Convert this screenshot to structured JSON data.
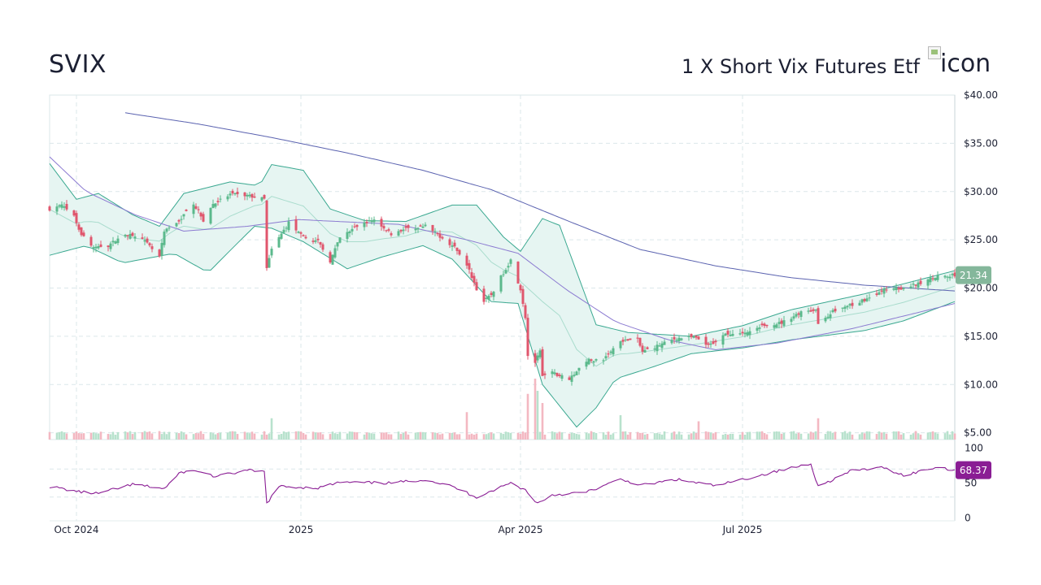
{
  "header": {
    "ticker": "SVIX",
    "name": "1 X Short Vix Futures Etf",
    "logo_alt": "icon"
  },
  "chart_data": {
    "type": "candlestick",
    "price_axis": {
      "ylim": [
        4.3,
        40.0
      ],
      "ticks": [
        5,
        10,
        15,
        20,
        25,
        30,
        35,
        40
      ],
      "tick_labels": [
        "$5.00",
        "$10.00",
        "$15.00",
        "$20.00",
        "$25.00",
        "$30.00",
        "$35.00",
        "$40.00"
      ],
      "grid": true
    },
    "x_axis": {
      "range": [
        "2024-09-20",
        "2025-09-26"
      ],
      "tick_dates": [
        "2024-10-01",
        "2025-01-01",
        "2025-04-01",
        "2025-07-01"
      ],
      "tick_labels": [
        "Oct 2024",
        "2025",
        "Apr 2025",
        "Jul 2025"
      ]
    },
    "close_anchors": [
      [
        "2024-09-20",
        28.2
      ],
      [
        "2024-09-25",
        28.6
      ],
      [
        "2024-09-30",
        27.4
      ],
      [
        "2024-10-03",
        25.6
      ],
      [
        "2024-10-08",
        24.2
      ],
      [
        "2024-10-14",
        24.4
      ],
      [
        "2024-10-21",
        25.6
      ],
      [
        "2024-10-28",
        25.1
      ],
      [
        "2024-11-04",
        23.2
      ],
      [
        "2024-11-06",
        25.8
      ],
      [
        "2024-11-12",
        27.0
      ],
      [
        "2024-11-18",
        28.8
      ],
      [
        "2024-11-22",
        27.0
      ],
      [
        "2024-11-26",
        28.7
      ],
      [
        "2024-12-03",
        29.7
      ],
      [
        "2024-12-10",
        29.6
      ],
      [
        "2024-12-17",
        29.2
      ],
      [
        "2024-12-18",
        22.0
      ],
      [
        "2024-12-20",
        24.0
      ],
      [
        "2024-12-27",
        26.8
      ],
      [
        "2025-01-02",
        25.2
      ],
      [
        "2025-01-08",
        24.8
      ],
      [
        "2025-01-13",
        22.8
      ],
      [
        "2025-01-17",
        25.2
      ],
      [
        "2025-01-24",
        26.4
      ],
      [
        "2025-01-31",
        27.1
      ],
      [
        "2025-02-07",
        25.6
      ],
      [
        "2025-02-14",
        26.2
      ],
      [
        "2025-02-21",
        26.4
      ],
      [
        "2025-02-28",
        25.2
      ],
      [
        "2025-03-06",
        24.0
      ],
      [
        "2025-03-11",
        21.8
      ],
      [
        "2025-03-14",
        19.9
      ],
      [
        "2025-03-17",
        18.6
      ],
      [
        "2025-03-20",
        19.3
      ],
      [
        "2025-03-25",
        21.6
      ],
      [
        "2025-03-28",
        22.9
      ],
      [
        "2025-04-01",
        19.9
      ],
      [
        "2025-04-03",
        17.0
      ],
      [
        "2025-04-04",
        13.0
      ],
      [
        "2025-04-07",
        12.3
      ],
      [
        "2025-04-09",
        13.4
      ],
      [
        "2025-04-10",
        10.8
      ],
      [
        "2025-04-14",
        11.2
      ],
      [
        "2025-04-21",
        10.6
      ],
      [
        "2025-04-28",
        12.5
      ],
      [
        "2025-05-05",
        12.6
      ],
      [
        "2025-05-12",
        14.6
      ],
      [
        "2025-05-19",
        14.6
      ],
      [
        "2025-05-21",
        13.4
      ],
      [
        "2025-05-28",
        14.1
      ],
      [
        "2025-06-04",
        14.8
      ],
      [
        "2025-06-11",
        14.9
      ],
      [
        "2025-06-17",
        14.0
      ],
      [
        "2025-06-24",
        15.2
      ],
      [
        "2025-07-01",
        15.2
      ],
      [
        "2025-07-10",
        16.2
      ],
      [
        "2025-07-17",
        16.4
      ],
      [
        "2025-07-24",
        17.4
      ],
      [
        "2025-07-31",
        17.8
      ],
      [
        "2025-08-01",
        16.3
      ],
      [
        "2025-08-07",
        17.6
      ],
      [
        "2025-08-14",
        18.2
      ],
      [
        "2025-08-21",
        18.9
      ],
      [
        "2025-08-28",
        19.8
      ],
      [
        "2025-09-04",
        20.0
      ],
      [
        "2025-09-11",
        20.4
      ],
      [
        "2025-09-18",
        21.2
      ],
      [
        "2025-09-26",
        21.34
      ]
    ],
    "sma_200_anchors": [
      [
        "2024-10-20",
        38.2
      ],
      [
        "2024-11-20",
        37.0
      ],
      [
        "2024-12-20",
        35.6
      ],
      [
        "2025-01-20",
        34.0
      ],
      [
        "2025-02-20",
        32.2
      ],
      [
        "2025-03-20",
        30.2
      ],
      [
        "2025-04-20",
        27.0
      ],
      [
        "2025-05-20",
        24.0
      ],
      [
        "2025-06-20",
        22.3
      ],
      [
        "2025-07-20",
        21.1
      ],
      [
        "2025-08-20",
        20.3
      ],
      [
        "2025-09-26",
        19.7
      ]
    ],
    "sma_50_anchors": [
      [
        "2024-09-20",
        33.6
      ],
      [
        "2024-10-05",
        30.0
      ],
      [
        "2024-10-25",
        27.6
      ],
      [
        "2024-11-14",
        25.9
      ],
      [
        "2024-12-10",
        26.4
      ],
      [
        "2024-12-31",
        27.1
      ],
      [
        "2025-02-10",
        26.6
      ],
      [
        "2025-03-10",
        25.0
      ],
      [
        "2025-03-31",
        23.6
      ],
      [
        "2025-04-20",
        19.8
      ],
      [
        "2025-05-10",
        16.5
      ],
      [
        "2025-06-01",
        14.6
      ],
      [
        "2025-06-20",
        13.6
      ],
      [
        "2025-07-15",
        14.3
      ],
      [
        "2025-08-15",
        15.8
      ],
      [
        "2025-09-26",
        18.4
      ]
    ],
    "bollinger_upper_anchors": [
      [
        "2024-09-20",
        32.9
      ],
      [
        "2024-10-01",
        29.2
      ],
      [
        "2024-10-10",
        29.8
      ],
      [
        "2024-10-24",
        27.6
      ],
      [
        "2024-11-04",
        26.4
      ],
      [
        "2024-11-14",
        29.8
      ],
      [
        "2024-12-03",
        31.0
      ],
      [
        "2024-12-15",
        30.6
      ],
      [
        "2024-12-20",
        32.8
      ],
      [
        "2025-01-02",
        32.2
      ],
      [
        "2025-01-13",
        28.2
      ],
      [
        "2025-01-27",
        27.0
      ],
      [
        "2025-02-13",
        26.9
      ],
      [
        "2025-03-04",
        28.6
      ],
      [
        "2025-03-14",
        28.6
      ],
      [
        "2025-03-25",
        25.3
      ],
      [
        "2025-04-01",
        23.8
      ],
      [
        "2025-04-10",
        27.2
      ],
      [
        "2025-04-17",
        26.5
      ],
      [
        "2025-05-02",
        16.2
      ],
      [
        "2025-05-15",
        15.4
      ],
      [
        "2025-06-10",
        15.0
      ],
      [
        "2025-07-01",
        16.1
      ],
      [
        "2025-07-20",
        17.7
      ],
      [
        "2025-08-20",
        19.4
      ],
      [
        "2025-09-26",
        21.8
      ]
    ],
    "bollinger_lower_anchors": [
      [
        "2024-09-20",
        23.4
      ],
      [
        "2024-10-05",
        24.4
      ],
      [
        "2024-10-20",
        22.6
      ],
      [
        "2024-11-10",
        23.6
      ],
      [
        "2024-11-24",
        21.6
      ],
      [
        "2024-12-05",
        24.4
      ],
      [
        "2024-12-13",
        26.4
      ],
      [
        "2024-12-20",
        26.2
      ],
      [
        "2025-01-02",
        24.8
      ],
      [
        "2025-01-20",
        22.0
      ],
      [
        "2025-02-03",
        23.2
      ],
      [
        "2025-02-20",
        24.4
      ],
      [
        "2025-03-04",
        23.0
      ],
      [
        "2025-03-20",
        18.6
      ],
      [
        "2025-03-31",
        18.4
      ],
      [
        "2025-04-10",
        10.0
      ],
      [
        "2025-04-24",
        5.6
      ],
      [
        "2025-05-02",
        7.6
      ],
      [
        "2025-05-10",
        10.6
      ],
      [
        "2025-05-25",
        11.8
      ],
      [
        "2025-06-10",
        13.2
      ],
      [
        "2025-07-01",
        13.8
      ],
      [
        "2025-07-20",
        14.6
      ],
      [
        "2025-08-20",
        15.6
      ],
      [
        "2025-09-05",
        16.6
      ],
      [
        "2025-09-26",
        18.6
      ]
    ],
    "volume_spikes": [
      [
        "2024-12-20",
        0.35
      ],
      [
        "2025-03-10",
        0.45
      ],
      [
        "2025-04-04",
        0.75
      ],
      [
        "2025-04-07",
        1.0
      ],
      [
        "2025-04-08",
        0.8
      ],
      [
        "2025-04-10",
        0.6
      ],
      [
        "2025-05-12",
        0.4
      ],
      [
        "2025-06-13",
        0.3
      ],
      [
        "2025-08-01",
        0.35
      ]
    ],
    "rsi_axis": {
      "ylim": [
        -4,
        104
      ],
      "ticks": [
        0,
        50,
        100
      ],
      "tick_labels": [
        "0",
        "50",
        "100"
      ],
      "bands": [
        30,
        70
      ]
    },
    "rsi_anchors": [
      [
        "2024-09-20",
        45
      ],
      [
        "2024-10-03",
        37
      ],
      [
        "2024-10-10",
        35
      ],
      [
        "2024-10-24",
        48
      ],
      [
        "2024-11-06",
        42
      ],
      [
        "2024-11-13",
        66
      ],
      [
        "2024-11-20",
        67
      ],
      [
        "2024-11-27",
        59
      ],
      [
        "2024-12-10",
        68
      ],
      [
        "2024-12-17",
        66
      ],
      [
        "2024-12-18",
        21
      ],
      [
        "2024-12-23",
        45
      ],
      [
        "2025-01-08",
        43
      ],
      [
        "2025-01-17",
        51
      ],
      [
        "2025-02-07",
        50
      ],
      [
        "2025-02-21",
        55
      ],
      [
        "2025-03-04",
        45
      ],
      [
        "2025-03-14",
        30
      ],
      [
        "2025-03-28",
        50
      ],
      [
        "2025-04-03",
        40
      ],
      [
        "2025-04-08",
        21
      ],
      [
        "2025-04-14",
        33
      ],
      [
        "2025-04-28",
        37
      ],
      [
        "2025-05-12",
        55
      ],
      [
        "2025-05-21",
        47
      ],
      [
        "2025-06-04",
        55
      ],
      [
        "2025-06-20",
        46
      ],
      [
        "2025-07-07",
        60
      ],
      [
        "2025-07-29",
        78
      ],
      [
        "2025-08-01",
        45
      ],
      [
        "2025-08-15",
        68
      ],
      [
        "2025-08-28",
        72
      ],
      [
        "2025-09-05",
        61
      ],
      [
        "2025-09-19",
        73
      ],
      [
        "2025-09-26",
        68.37
      ]
    ],
    "last_close": 21.34,
    "last_close_label": "21.34",
    "last_rsi_label": "68.37",
    "colors": {
      "up": "#5bb98c",
      "down": "#e0566d",
      "up_volume": "#b8e2cd",
      "down_volume": "#f3b8c2",
      "sma_200": "#5b63b0",
      "sma_50": "#8b7ad1",
      "bollinger_line": "#3aa890",
      "bollinger_fill": "#e6f5f2",
      "bollinger_mid": "#a9dccd",
      "rsi": "#8a1d94",
      "grid": "#dbe7ea",
      "axis_text": "#1c2033",
      "last_close_badge": "#84b79b",
      "rsi_badge": "#8a1d94"
    }
  }
}
